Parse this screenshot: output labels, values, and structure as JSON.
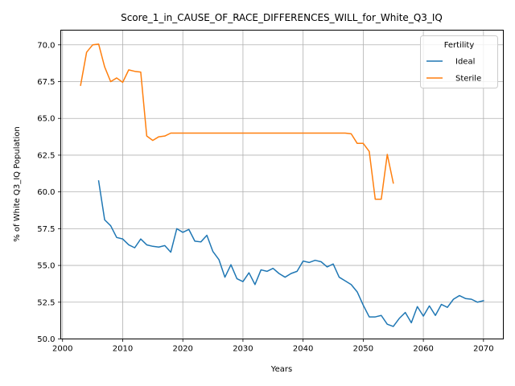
{
  "chart_data": {
    "type": "line",
    "title": "Score_1_in_CAUSE_OF_RACE_DIFFERENCES_WILL_for_White_Q3_IQ",
    "xlabel": "Years",
    "ylabel": "% of White Q3_IQ Population",
    "xlim": [
      1999.7,
      2073.3
    ],
    "ylim": [
      50.0,
      71.0
    ],
    "xticks": [
      2000,
      2010,
      2020,
      2030,
      2040,
      2050,
      2060,
      2070
    ],
    "yticks": [
      50.0,
      52.5,
      55.0,
      57.5,
      60.0,
      62.5,
      65.0,
      67.5,
      70.0
    ],
    "grid": true,
    "legend": {
      "title": "Fertility",
      "placement": "top-right"
    },
    "series": [
      {
        "name": "Ideal",
        "color": "#1f77b4",
        "x": [
          2006,
          2007,
          2008,
          2009,
          2010,
          2011,
          2012,
          2013,
          2014,
          2015,
          2016,
          2017,
          2018,
          2019,
          2020,
          2021,
          2022,
          2023,
          2024,
          2025,
          2026,
          2027,
          2028,
          2029,
          2030,
          2031,
          2032,
          2033,
          2034,
          2035,
          2036,
          2037,
          2038,
          2039,
          2040,
          2041,
          2042,
          2043,
          2044,
          2045,
          2046,
          2047,
          2048,
          2049,
          2050,
          2051,
          2052,
          2053,
          2054,
          2055,
          2056,
          2057,
          2058,
          2059,
          2060,
          2061,
          2062,
          2063,
          2064,
          2065,
          2066,
          2067,
          2068,
          2069,
          2070
        ],
        "y": [
          60.75,
          58.1,
          57.7,
          56.9,
          56.8,
          56.4,
          56.2,
          56.8,
          56.4,
          56.3,
          56.25,
          56.35,
          55.9,
          57.5,
          57.25,
          57.45,
          56.65,
          56.6,
          57.05,
          55.95,
          55.4,
          54.2,
          55.05,
          54.1,
          53.9,
          54.5,
          53.7,
          54.7,
          54.6,
          54.8,
          54.45,
          54.2,
          54.45,
          54.6,
          55.3,
          55.2,
          55.35,
          55.25,
          54.9,
          55.1,
          54.2,
          53.95,
          53.7,
          53.2,
          52.3,
          51.5,
          51.5,
          51.6,
          51.0,
          50.85,
          51.4,
          51.8,
          51.1,
          52.2,
          51.55,
          52.25,
          51.6,
          52.35,
          52.15,
          52.7,
          52.95,
          52.75,
          52.7,
          52.5,
          52.6
        ]
      },
      {
        "name": "Sterile",
        "color": "#ff7f0e",
        "x": [
          2003,
          2004,
          2005,
          2006,
          2007,
          2008,
          2009,
          2010,
          2011,
          2012,
          2013,
          2014,
          2015,
          2016,
          2017,
          2018,
          2019,
          2020,
          2021,
          2022,
          2023,
          2024,
          2025,
          2026,
          2027,
          2028,
          2029,
          2030,
          2031,
          2032,
          2033,
          2034,
          2035,
          2036,
          2037,
          2038,
          2039,
          2040,
          2041,
          2042,
          2043,
          2044,
          2045,
          2046,
          2047,
          2048,
          2049,
          2050,
          2051,
          2052,
          2053,
          2054,
          2055
        ],
        "y": [
          67.25,
          69.5,
          70.0,
          70.05,
          68.5,
          67.5,
          67.75,
          67.45,
          68.3,
          68.2,
          68.15,
          63.8,
          63.5,
          63.75,
          63.8,
          64.0,
          64.0,
          64.0,
          64.0,
          64.0,
          64.0,
          64.0,
          64.0,
          64.0,
          64.0,
          64.0,
          64.0,
          64.0,
          64.0,
          64.0,
          64.0,
          64.0,
          64.0,
          64.0,
          64.0,
          64.0,
          64.0,
          64.0,
          64.0,
          64.0,
          64.0,
          64.0,
          64.0,
          64.0,
          64.0,
          63.95,
          63.3,
          63.3,
          62.75,
          59.5,
          59.5,
          62.55,
          60.6
        ]
      }
    ]
  }
}
